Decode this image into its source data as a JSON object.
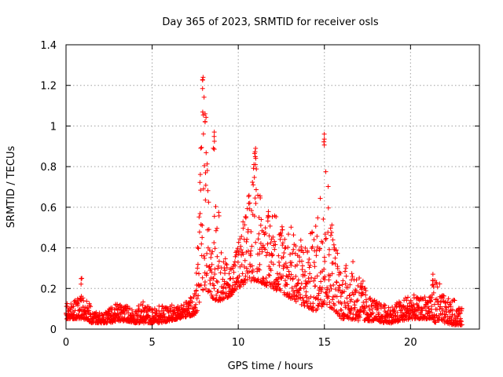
{
  "chart_data": {
    "type": "scatter",
    "title": "Day 365 of 2023, SRMTID for receiver osls",
    "xlabel": "GPS time / hours",
    "ylabel": "SRMTID / TECUs",
    "xlim": [
      0,
      24
    ],
    "ylim": [
      0,
      1.4
    ],
    "x_ticks": [
      0,
      5,
      10,
      15,
      20
    ],
    "x_tick_labels": [
      "0",
      "5",
      "10",
      "15",
      "20"
    ],
    "y_ticks": [
      0,
      0.2,
      0.4,
      0.6,
      0.8,
      1.0,
      1.2,
      1.4
    ],
    "y_tick_labels": [
      "0",
      "0.2",
      "0.4",
      "0.6",
      "0.8",
      "1",
      "1.2",
      "1.4"
    ],
    "grid": true,
    "marker": "+",
    "color": "#ff0000",
    "envelope": {
      "x": [
        0,
        0.5,
        1.0,
        1.5,
        2.0,
        2.5,
        3.0,
        3.5,
        4.0,
        4.5,
        5.0,
        5.5,
        6.0,
        6.5,
        7.0,
        7.5,
        7.8,
        8.0,
        8.3,
        8.6,
        9.0,
        9.5,
        10.0,
        10.5,
        11.0,
        11.5,
        12.0,
        12.5,
        13.0,
        13.5,
        14.0,
        14.5,
        15.0,
        15.5,
        16.0,
        16.5,
        17.0,
        17.5,
        18.0,
        18.5,
        19.0,
        19.5,
        20.0,
        20.5,
        21.0,
        21.5,
        22.0,
        22.5,
        23.0
      ],
      "y_low": [
        0.05,
        0.05,
        0.05,
        0.03,
        0.03,
        0.03,
        0.04,
        0.04,
        0.03,
        0.03,
        0.03,
        0.03,
        0.04,
        0.05,
        0.06,
        0.07,
        0.12,
        0.2,
        0.18,
        0.14,
        0.14,
        0.16,
        0.2,
        0.22,
        0.24,
        0.22,
        0.2,
        0.18,
        0.15,
        0.13,
        0.1,
        0.09,
        0.12,
        0.1,
        0.05,
        0.05,
        0.04,
        0.04,
        0.04,
        0.03,
        0.03,
        0.04,
        0.05,
        0.05,
        0.05,
        0.03,
        0.03,
        0.02,
        0.02
      ],
      "y_high": [
        0.13,
        0.14,
        0.2,
        0.1,
        0.08,
        0.1,
        0.13,
        0.12,
        0.1,
        0.14,
        0.1,
        0.12,
        0.12,
        0.12,
        0.14,
        0.18,
        0.85,
        1.24,
        0.62,
        0.97,
        0.4,
        0.3,
        0.45,
        0.62,
        0.9,
        0.55,
        0.62,
        0.55,
        0.52,
        0.45,
        0.45,
        0.52,
        0.96,
        0.5,
        0.3,
        0.35,
        0.3,
        0.18,
        0.14,
        0.12,
        0.12,
        0.15,
        0.18,
        0.15,
        0.18,
        0.28,
        0.15,
        0.15,
        0.1
      ]
    },
    "peaks": [
      {
        "x": 7.95,
        "y": 1.24
      },
      {
        "x": 8.1,
        "y": 1.06
      },
      {
        "x": 8.6,
        "y": 0.97
      },
      {
        "x": 11.0,
        "y": 0.89
      },
      {
        "x": 15.0,
        "y": 0.96
      },
      {
        "x": 21.3,
        "y": 0.27
      },
      {
        "x": 0.9,
        "y": 0.25
      }
    ]
  }
}
